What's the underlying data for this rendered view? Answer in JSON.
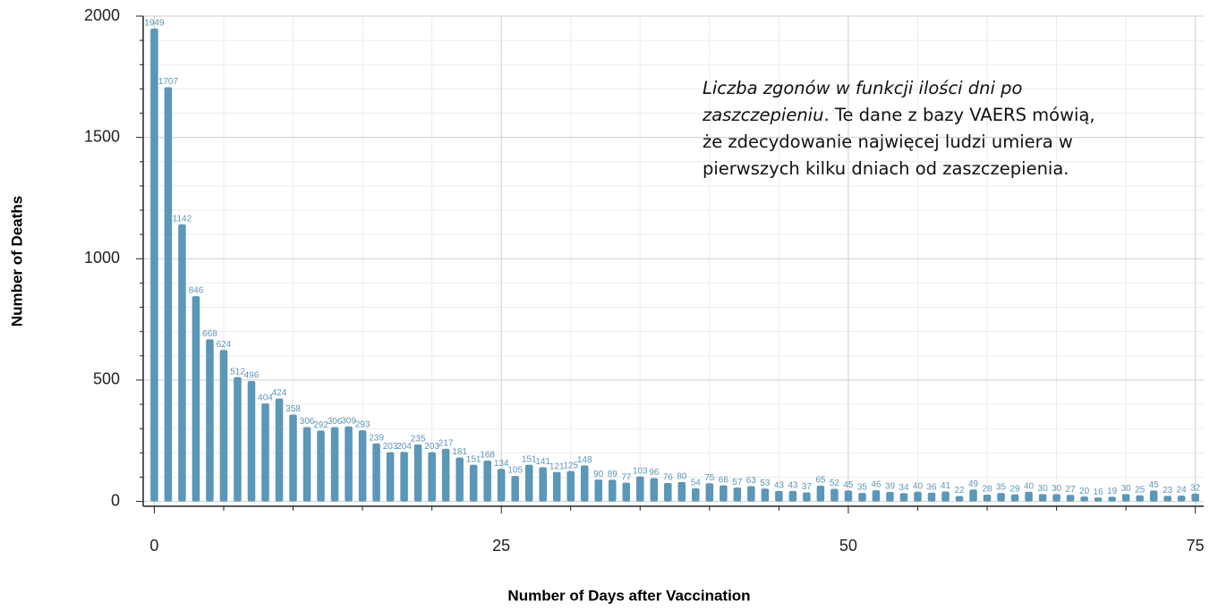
{
  "chart_data": {
    "type": "bar",
    "xlabel": "Number of Days after Vaccination",
    "ylabel": "Number of Deaths",
    "annotation": {
      "italic": "Liczba zgonów w funkcji ilości dni po zaszczepieniu",
      "text": ". Te dane z bazy VAERS mówią, że zdecydowanie najwięcej ludzi umiera w pierwszych kilku dniach od zaszczepienia."
    },
    "color": "#5b97b7",
    "x": [
      0,
      1,
      2,
      3,
      4,
      5,
      6,
      7,
      8,
      9,
      10,
      11,
      12,
      13,
      14,
      15,
      16,
      17,
      18,
      19,
      20,
      21,
      22,
      23,
      24,
      25,
      26,
      27,
      28,
      29,
      30,
      31,
      32,
      33,
      34,
      35,
      36,
      37,
      38,
      39,
      40,
      41,
      42,
      43,
      44,
      45,
      46,
      47,
      48,
      49,
      50,
      51,
      52,
      53,
      54,
      55,
      56,
      57,
      58,
      59,
      60,
      61,
      62,
      63,
      64,
      65,
      66,
      67,
      68,
      69,
      70,
      71,
      72,
      73,
      74,
      75
    ],
    "values": [
      1949,
      1707,
      1142,
      846,
      668,
      624,
      512,
      496,
      404,
      424,
      358,
      306,
      292,
      306,
      309,
      293,
      239,
      203,
      204,
      235,
      203,
      217,
      181,
      151,
      168,
      134,
      105,
      151,
      141,
      121,
      125,
      148,
      90,
      89,
      77,
      103,
      96,
      76,
      80,
      54,
      75,
      66,
      57,
      63,
      53,
      43,
      43,
      37,
      65,
      52,
      45,
      35,
      46,
      39,
      34,
      40,
      36,
      41,
      22,
      49,
      28,
      35,
      29,
      40,
      30,
      30,
      27,
      20,
      16,
      19,
      30,
      25,
      45,
      23,
      24,
      32
    ],
    "xlim": [
      -0.8,
      75.6
    ],
    "ylim": [
      -20,
      2000
    ],
    "xticks": [
      0,
      25,
      50,
      75
    ],
    "yticks": [
      0,
      500,
      1000,
      1500,
      2000
    ],
    "xminorticks": [
      5,
      10,
      15,
      20,
      30,
      35,
      40,
      45,
      55,
      60,
      65,
      70
    ],
    "yminorticks": [
      100,
      200,
      300,
      400,
      600,
      700,
      800,
      900,
      1100,
      1200,
      1300,
      1400,
      1600,
      1700,
      1800,
      1900
    ],
    "grid": true
  }
}
